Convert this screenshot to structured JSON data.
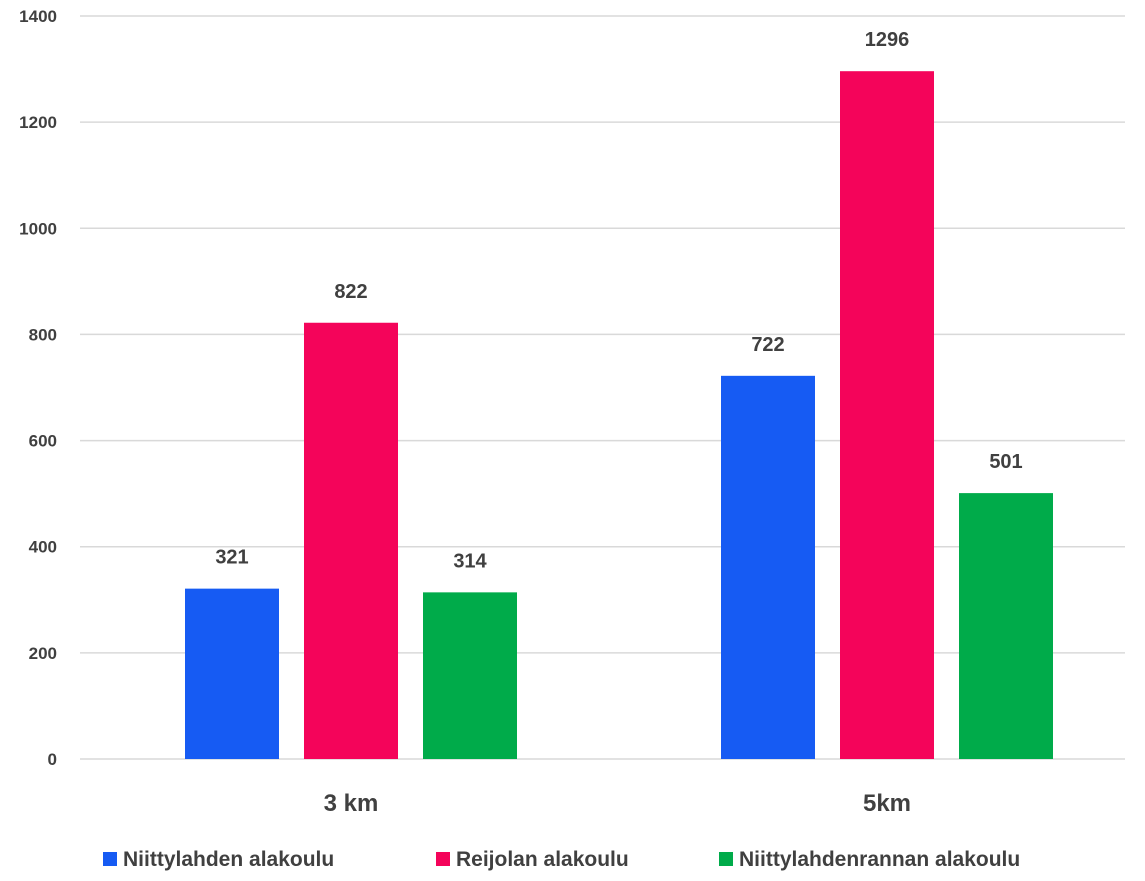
{
  "chart_data": {
    "type": "bar",
    "categories": [
      "3 km",
      "5km"
    ],
    "series": [
      {
        "name": "Niittylahden alakoulu",
        "color": "#165BF3",
        "values": [
          321,
          722
        ]
      },
      {
        "name": "Reijolan alakoulu",
        "color": "#F4045A",
        "values": [
          822,
          1296
        ]
      },
      {
        "name": "Niittylahdenrannan alakoulu",
        "color": "#00AB4A",
        "values": [
          314,
          501
        ]
      }
    ],
    "ylim": [
      0,
      1400
    ],
    "yticks": [
      "0",
      "200",
      "400",
      "600",
      "800",
      "1000",
      "1200",
      "1400"
    ],
    "grid": true,
    "legend_position": "bottom"
  }
}
